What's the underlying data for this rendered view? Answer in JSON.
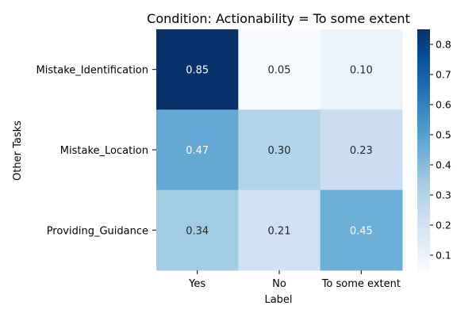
{
  "chart_data": {
    "type": "heatmap",
    "title": "Condition: Actionability = To some extent",
    "xlabel": "Label",
    "ylabel": "Other Tasks",
    "x_categories": [
      "Yes",
      "No",
      "To some extent"
    ],
    "y_categories": [
      "Mistake_Identification",
      "Mistake_Location",
      "Providing_Guidance"
    ],
    "values": [
      [
        0.85,
        0.05,
        0.1
      ],
      [
        0.47,
        0.3,
        0.23
      ],
      [
        0.34,
        0.21,
        0.45
      ]
    ],
    "cell_labels": [
      [
        "0.85",
        "0.05",
        "0.10"
      ],
      [
        "0.47",
        "0.30",
        "0.23"
      ],
      [
        "0.34",
        "0.21",
        "0.45"
      ]
    ],
    "colormap": "Blues",
    "color_range": [
      0.05,
      0.85
    ],
    "colorbar_ticks": [
      "0.1",
      "0.2",
      "0.3",
      "0.4",
      "0.5",
      "0.6",
      "0.7",
      "0.8"
    ],
    "colors": {
      "low": "#f7fbff",
      "high": "#08306b",
      "text_dark": "#262626",
      "text_light": "#ffffff"
    }
  }
}
